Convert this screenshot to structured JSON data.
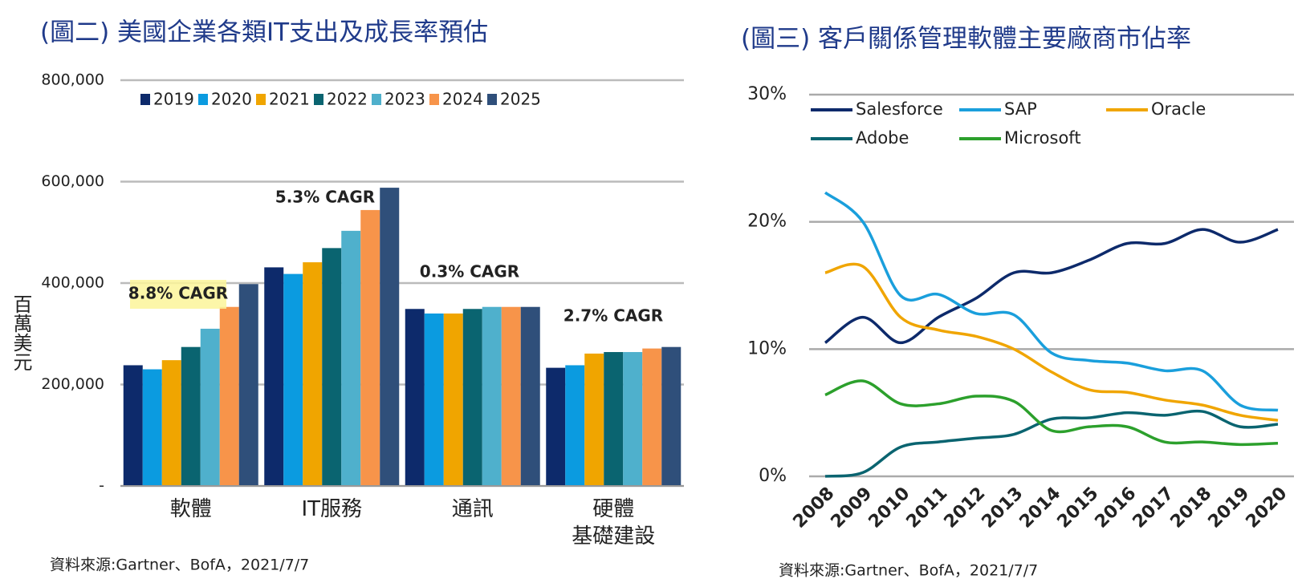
{
  "chart_data": [
    {
      "type": "bar",
      "title": "(圖二) 美國企業各類IT支出及成長率預估",
      "y_label": "百萬美元",
      "categories": [
        "軟體",
        "IT服務",
        "通訊",
        "硬體\n基礎建設"
      ],
      "series": [
        {
          "name": "2019",
          "color": "#0d2a6b",
          "values": [
            238000,
            431000,
            349000,
            233000
          ]
        },
        {
          "name": "2020",
          "color": "#0b9be0",
          "values": [
            230000,
            418000,
            340000,
            238000
          ]
        },
        {
          "name": "2021",
          "color": "#f0a500",
          "values": [
            248000,
            441000,
            340000,
            261000
          ]
        },
        {
          "name": "2022",
          "color": "#0a6470",
          "values": [
            274000,
            469000,
            349000,
            264000
          ]
        },
        {
          "name": "2023",
          "color": "#4fb0cc",
          "values": [
            310000,
            503000,
            353000,
            264000
          ]
        },
        {
          "name": "2024",
          "color": "#f7944a",
          "values": [
            353000,
            544000,
            353000,
            271000
          ]
        },
        {
          "name": "2025",
          "color": "#2f4f7a",
          "values": [
            398000,
            588000,
            353000,
            274000
          ]
        }
      ],
      "annotations": [
        "8.8% CAGR",
        "5.3% CAGR",
        "0.3% CAGR",
        "2.7% CAGR"
      ],
      "ylim": [
        0,
        800000
      ],
      "yticks": [
        {
          "value": 0,
          "label": "-"
        },
        {
          "value": 200000,
          "label": "200,000"
        },
        {
          "value": 400000,
          "label": "400,000"
        },
        {
          "value": 600000,
          "label": "600,000"
        },
        {
          "value": 800000,
          "label": "800,000"
        }
      ],
      "grid": true,
      "source": "資料來源:Gartner、BofA，2021/7/7"
    },
    {
      "type": "line",
      "title": "(圖三) 客戶關係管理軟體主要廠商市佔率",
      "categories": [
        "2008",
        "2009",
        "2010",
        "2011",
        "2012",
        "2013",
        "2014",
        "2015",
        "2016",
        "2017",
        "2018",
        "2019",
        "2020"
      ],
      "series": [
        {
          "name": "Salesforce",
          "color": "#0d2a6b",
          "values": [
            10.5,
            12.5,
            10.5,
            12.5,
            14,
            16,
            16,
            17,
            18.3,
            18.3,
            19.4,
            18.4,
            19.4
          ]
        },
        {
          "name": "SAP",
          "color": "#1a9fdc",
          "values": [
            22.3,
            20,
            14.2,
            14.3,
            12.8,
            12.7,
            9.7,
            9.1,
            8.9,
            8.3,
            8.3,
            5.6,
            5.2
          ]
        },
        {
          "name": "Oracle",
          "color": "#f0a500",
          "values": [
            16,
            16.5,
            12.5,
            11.5,
            11,
            10,
            8.2,
            6.8,
            6.6,
            6,
            5.6,
            4.8,
            4.4
          ]
        },
        {
          "name": "Adobe",
          "color": "#0a6470",
          "values": [
            0,
            0.3,
            2.3,
            2.7,
            3,
            3.3,
            4.5,
            4.6,
            5,
            4.8,
            5.1,
            3.9,
            4.1
          ]
        },
        {
          "name": "Microsoft",
          "color": "#2ca02c",
          "values": [
            6.4,
            7.5,
            5.7,
            5.7,
            6.3,
            5.9,
            3.6,
            3.9,
            3.9,
            2.7,
            2.7,
            2.5,
            2.6
          ]
        }
      ],
      "ylim": [
        0,
        30
      ],
      "yticks": [
        {
          "value": 0,
          "label": "0%"
        },
        {
          "value": 10,
          "label": "10%"
        },
        {
          "value": 20,
          "label": "20%"
        },
        {
          "value": 30,
          "label": "30%"
        }
      ],
      "grid": true,
      "source": "資料來源:Gartner、BofA，2021/7/7"
    }
  ]
}
